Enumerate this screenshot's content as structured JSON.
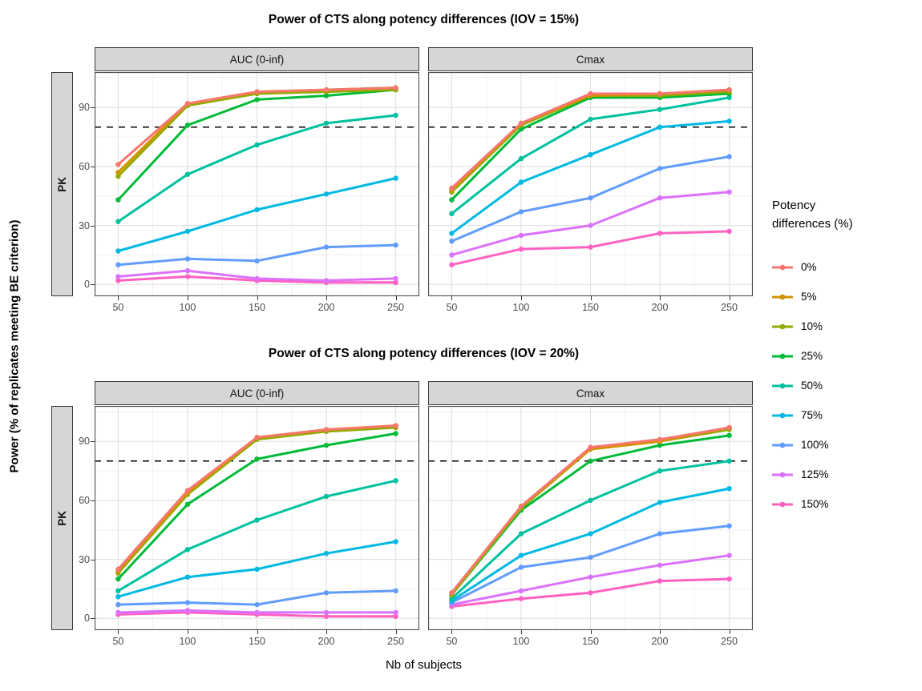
{
  "y_axis_label": "Power (% of replicates meeting BE criterion)",
  "x_axis_label": "Nb of subjects",
  "legend": {
    "title_lines": [
      "Potency",
      "differences (%)"
    ],
    "items": [
      {
        "label": "0%",
        "color": "#F8766D"
      },
      {
        "label": "5%",
        "color": "#D39200"
      },
      {
        "label": "10%",
        "color": "#93AA00"
      },
      {
        "label": "25%",
        "color": "#00BA38"
      },
      {
        "label": "50%",
        "color": "#00C19F"
      },
      {
        "label": "75%",
        "color": "#00B9E3"
      },
      {
        "label": "100%",
        "color": "#619CFF"
      },
      {
        "label": "125%",
        "color": "#DB72FB"
      },
      {
        "label": "150%",
        "color": "#FF61C3"
      }
    ]
  },
  "chart_data": [
    {
      "type": "line",
      "title": "Power of CTS along potency differences (IOV = 15%)",
      "row_facet": "PK",
      "facets": [
        "AUC (0-inf)",
        "Cmax"
      ],
      "x": [
        50,
        100,
        150,
        200,
        250
      ],
      "x_ticks": [
        50,
        100,
        150,
        200,
        250
      ],
      "y_ticks": [
        0,
        30,
        60,
        90
      ],
      "xlim": [
        50,
        250
      ],
      "ylim": [
        0,
        100
      ],
      "ref_line_y": 80,
      "grid": true,
      "panels": [
        {
          "facet": "AUC (0-inf)",
          "series": [
            {
              "name": "0%",
              "values": [
                61,
                92,
                98,
                99,
                100
              ]
            },
            {
              "name": "5%",
              "values": [
                57,
                92,
                98,
                99,
                100
              ]
            },
            {
              "name": "10%",
              "values": [
                55,
                91,
                97,
                98,
                99
              ]
            },
            {
              "name": "25%",
              "values": [
                43,
                81,
                94,
                96,
                99
              ]
            },
            {
              "name": "50%",
              "values": [
                32,
                56,
                71,
                82,
                86
              ]
            },
            {
              "name": "75%",
              "values": [
                17,
                27,
                38,
                46,
                54
              ]
            },
            {
              "name": "100%",
              "values": [
                10,
                13,
                12,
                19,
                20
              ]
            },
            {
              "name": "125%",
              "values": [
                4,
                7,
                3,
                2,
                3
              ]
            },
            {
              "name": "150%",
              "values": [
                2,
                4,
                2,
                1,
                1
              ]
            }
          ]
        },
        {
          "facet": "Cmax",
          "series": [
            {
              "name": "0%",
              "values": [
                49,
                82,
                97,
                97,
                99
              ]
            },
            {
              "name": "5%",
              "values": [
                48,
                82,
                96,
                97,
                99
              ]
            },
            {
              "name": "10%",
              "values": [
                47,
                81,
                96,
                96,
                98
              ]
            },
            {
              "name": "25%",
              "values": [
                43,
                79,
                95,
                95,
                97
              ]
            },
            {
              "name": "50%",
              "values": [
                36,
                64,
                84,
                89,
                95
              ]
            },
            {
              "name": "75%",
              "values": [
                26,
                52,
                66,
                80,
                83
              ]
            },
            {
              "name": "100%",
              "values": [
                22,
                37,
                44,
                59,
                65
              ]
            },
            {
              "name": "125%",
              "values": [
                15,
                25,
                30,
                44,
                47
              ]
            },
            {
              "name": "150%",
              "values": [
                10,
                18,
                19,
                26,
                27
              ]
            }
          ]
        }
      ]
    },
    {
      "type": "line",
      "title": "Power of CTS along potency differences (IOV = 20%)",
      "row_facet": "PK",
      "facets": [
        "AUC (0-inf)",
        "Cmax"
      ],
      "x": [
        50,
        100,
        150,
        200,
        250
      ],
      "x_ticks": [
        50,
        100,
        150,
        200,
        250
      ],
      "y_ticks": [
        0,
        30,
        60,
        90
      ],
      "xlim": [
        50,
        250
      ],
      "ylim": [
        0,
        100
      ],
      "ref_line_y": 80,
      "grid": true,
      "panels": [
        {
          "facet": "AUC (0-inf)",
          "series": [
            {
              "name": "0%",
              "values": [
                25,
                65,
                92,
                96,
                98
              ]
            },
            {
              "name": "5%",
              "values": [
                24,
                64,
                92,
                96,
                98
              ]
            },
            {
              "name": "10%",
              "values": [
                23,
                63,
                91,
                95,
                97
              ]
            },
            {
              "name": "25%",
              "values": [
                20,
                58,
                81,
                88,
                94
              ]
            },
            {
              "name": "50%",
              "values": [
                14,
                35,
                50,
                62,
                70
              ]
            },
            {
              "name": "75%",
              "values": [
                11,
                21,
                25,
                33,
                39
              ]
            },
            {
              "name": "100%",
              "values": [
                7,
                8,
                7,
                13,
                14
              ]
            },
            {
              "name": "125%",
              "values": [
                3,
                4,
                3,
                3,
                3
              ]
            },
            {
              "name": "150%",
              "values": [
                2,
                3,
                2,
                1,
                1
              ]
            }
          ]
        },
        {
          "facet": "Cmax",
          "series": [
            {
              "name": "0%",
              "values": [
                13,
                57,
                87,
                91,
                97
              ]
            },
            {
              "name": "5%",
              "values": [
                13,
                57,
                86,
                90,
                97
              ]
            },
            {
              "name": "10%",
              "values": [
                12,
                56,
                86,
                90,
                96
              ]
            },
            {
              "name": "25%",
              "values": [
                12,
                55,
                80,
                88,
                93
              ]
            },
            {
              "name": "50%",
              "values": [
                10,
                43,
                60,
                75,
                80
              ]
            },
            {
              "name": "75%",
              "values": [
                9,
                32,
                43,
                59,
                66
              ]
            },
            {
              "name": "100%",
              "values": [
                8,
                26,
                31,
                43,
                47
              ]
            },
            {
              "name": "125%",
              "values": [
                7,
                14,
                21,
                27,
                32
              ]
            },
            {
              "name": "150%",
              "values": [
                6,
                10,
                13,
                19,
                20
              ]
            }
          ]
        }
      ]
    }
  ]
}
